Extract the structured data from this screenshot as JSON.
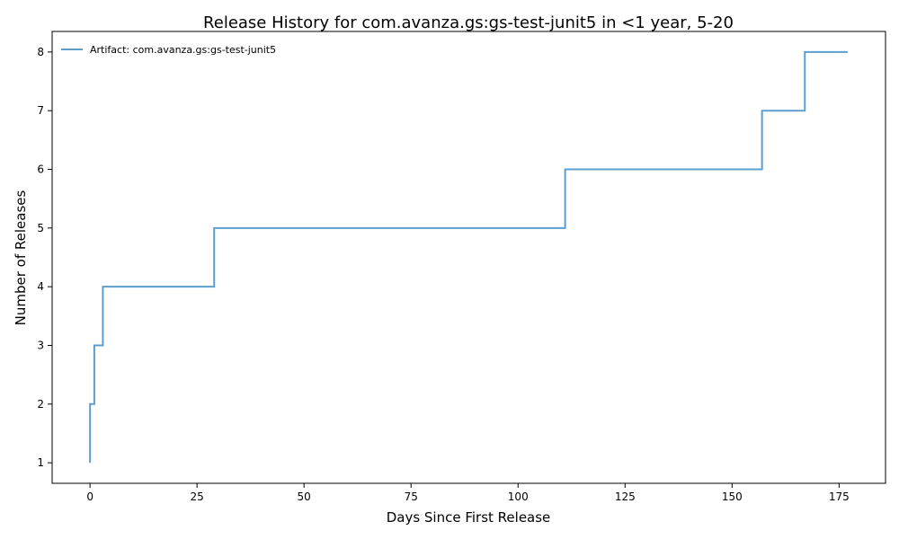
{
  "chart_data": {
    "type": "line",
    "step": "post",
    "title": "Release History for com.avanza.gs:gs-test-junit5 in <1 year, 5-20",
    "xlabel": "Days Since First Release",
    "ylabel": "Number of Releases",
    "xlim": [
      -8.85,
      185.85
    ],
    "ylim": [
      0.65,
      8.35
    ],
    "xticks": [
      0,
      25,
      50,
      75,
      100,
      125,
      150,
      175
    ],
    "yticks": [
      1,
      2,
      3,
      4,
      5,
      6,
      7,
      8
    ],
    "grid": false,
    "legend_position": "top-left",
    "series": [
      {
        "name": "Artifact: com.avanza.gs:gs-test-junit5",
        "color": "#5b9fcf",
        "x": [
          0,
          0,
          1,
          3,
          29,
          111,
          157,
          167,
          177
        ],
        "y": [
          1,
          2,
          3,
          4,
          5,
          6,
          7,
          8,
          8
        ]
      }
    ]
  }
}
